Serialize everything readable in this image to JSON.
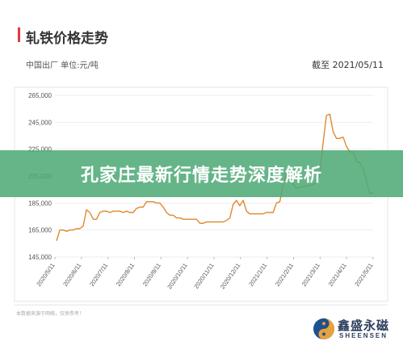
{
  "header": {
    "title": "轧铁价格走势",
    "subtitle": "中国出厂  单位:元/吨",
    "date_label": "截至 2021/05/11"
  },
  "banner": {
    "text": "孔家庄最新行情走势深度解析"
  },
  "footer": {
    "note": "本数据来源于网络，仅供参考！",
    "brand_cn": "鑫盛永磁",
    "brand_en": "SHEENSEN"
  },
  "colors": {
    "line": "#e08a2e",
    "accent": "#e0393e",
    "banner": "#4ca976",
    "axis_text": "#555555",
    "grid": "#eeeeee"
  },
  "chart_data": {
    "type": "line",
    "title": "轧铁价格走势",
    "ylim": [
      145000,
      265000
    ],
    "y_ticks": [
      "145,000",
      "165,000",
      "185,000",
      "205,000",
      "225,000",
      "245,000",
      "265,000"
    ],
    "y_tick_values": [
      145000,
      165000,
      185000,
      205000,
      225000,
      245000,
      265000
    ],
    "x_ticks": [
      "2020/5/11",
      "2020/6/11",
      "2020/7/11",
      "2020/8/11",
      "2020/9/11",
      "2020/10/11",
      "2020/11/11",
      "2020/12/11",
      "2021/1/11",
      "2021/2/11",
      "2021/3/11",
      "2021/4/11",
      "2021/5/11"
    ],
    "series": [
      {
        "values": [
          157000,
          165000,
          165000,
          164000,
          165000,
          165000,
          166000,
          166000,
          168000,
          180000,
          178000,
          173000,
          173000,
          178000,
          179000,
          179000,
          178000,
          179000,
          179000,
          179000,
          178000,
          179000,
          178000,
          178000,
          181000,
          182000,
          182000,
          186000,
          186000,
          186000,
          185000,
          185000,
          182000,
          178000,
          176000,
          176000,
          174000,
          174000,
          173000,
          173000,
          173000,
          173000,
          173000,
          170000,
          170000,
          171000,
          171000,
          171000,
          171000,
          171000,
          171000,
          172000,
          174000,
          184000,
          187000,
          183000,
          187000,
          179000,
          177000,
          177000,
          177000,
          177000,
          177000,
          178000,
          178000,
          178000,
          185000,
          186000,
          199000,
          207000,
          205000,
          199000,
          196000,
          197000,
          197000,
          198000,
          198000,
          199000,
          200000,
          206000,
          230000,
          250000,
          251000,
          238000,
          233000,
          233000,
          234000,
          227000,
          223000,
          223000,
          216000,
          215000,
          210000,
          202000,
          192000,
          193000
        ]
      }
    ],
    "grid": true,
    "legend": "none"
  }
}
